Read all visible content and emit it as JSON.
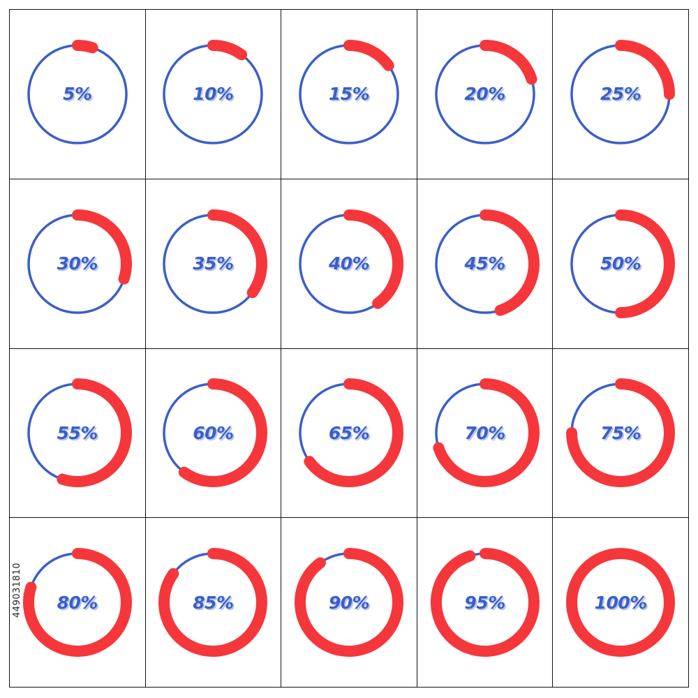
{
  "colors": {
    "track": "#3a5fc8",
    "progress": "#f5373b",
    "label": "#3a5fc8",
    "label_shadow": "#b9c6ee",
    "grid_line": "#111111"
  },
  "indicators": [
    {
      "label": "5%",
      "value": 5
    },
    {
      "label": "10%",
      "value": 10
    },
    {
      "label": "15%",
      "value": 15
    },
    {
      "label": "20%",
      "value": 20
    },
    {
      "label": "25%",
      "value": 25
    },
    {
      "label": "30%",
      "value": 30
    },
    {
      "label": "35%",
      "value": 35
    },
    {
      "label": "40%",
      "value": 40
    },
    {
      "label": "45%",
      "value": 45
    },
    {
      "label": "50%",
      "value": 50
    },
    {
      "label": "55%",
      "value": 55
    },
    {
      "label": "60%",
      "value": 60
    },
    {
      "label": "65%",
      "value": 65
    },
    {
      "label": "70%",
      "value": 70
    },
    {
      "label": "75%",
      "value": 75
    },
    {
      "label": "80%",
      "value": 80
    },
    {
      "label": "85%",
      "value": 85
    },
    {
      "label": "90%",
      "value": 90
    },
    {
      "label": "95%",
      "value": 95
    },
    {
      "label": "100%",
      "value": 100
    }
  ],
  "stock_id": "449031810"
}
